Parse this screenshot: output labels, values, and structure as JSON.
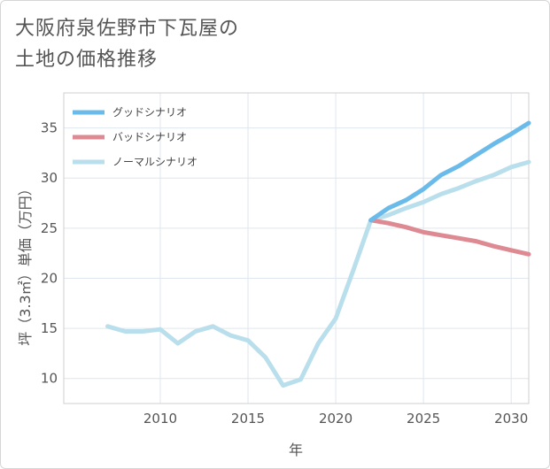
{
  "title_line1": "大阪府泉佐野市下瓦屋の",
  "title_line2": "土地の価格推移",
  "chart_data": {
    "type": "line",
    "xlabel": "年",
    "ylabel": "坪（3.3㎡）単価（万円）",
    "xlim": [
      2004.5,
      2031
    ],
    "ylim": [
      7.5,
      38.5
    ],
    "xticks": [
      2010,
      2015,
      2020,
      2025,
      2030
    ],
    "yticks": [
      10,
      15,
      20,
      25,
      30,
      35
    ],
    "grid": true,
    "legend_position": "top-left",
    "series": [
      {
        "name": "グッドシナリオ",
        "color": "#6bbbea",
        "x": [
          2022,
          2023,
          2024,
          2025,
          2026,
          2027,
          2028,
          2029,
          2030,
          2031
        ],
        "y": [
          25.8,
          27.0,
          27.8,
          28.9,
          30.3,
          31.2,
          32.3,
          33.4,
          34.4,
          35.5
        ]
      },
      {
        "name": "バッドシナリオ",
        "color": "#de8a93",
        "x": [
          2022,
          2023,
          2024,
          2025,
          2026,
          2027,
          2028,
          2029,
          2030,
          2031
        ],
        "y": [
          25.8,
          25.5,
          25.1,
          24.6,
          24.3,
          24.0,
          23.7,
          23.2,
          22.8,
          22.4
        ]
      },
      {
        "name": "ノーマルシナリオ",
        "color": "#badfec",
        "x": [
          2007,
          2008,
          2009,
          2010,
          2011,
          2012,
          2013,
          2014,
          2015,
          2016,
          2017,
          2018,
          2019,
          2020,
          2021,
          2022,
          2023,
          2024,
          2025,
          2026,
          2027,
          2028,
          2029,
          2030,
          2031
        ],
        "y": [
          15.2,
          14.7,
          14.7,
          14.9,
          13.5,
          14.7,
          15.2,
          14.3,
          13.8,
          12.1,
          9.3,
          9.9,
          13.5,
          16.0,
          20.8,
          25.8,
          26.3,
          27.0,
          27.6,
          28.4,
          29.0,
          29.7,
          30.3,
          31.1,
          31.6
        ]
      }
    ]
  }
}
